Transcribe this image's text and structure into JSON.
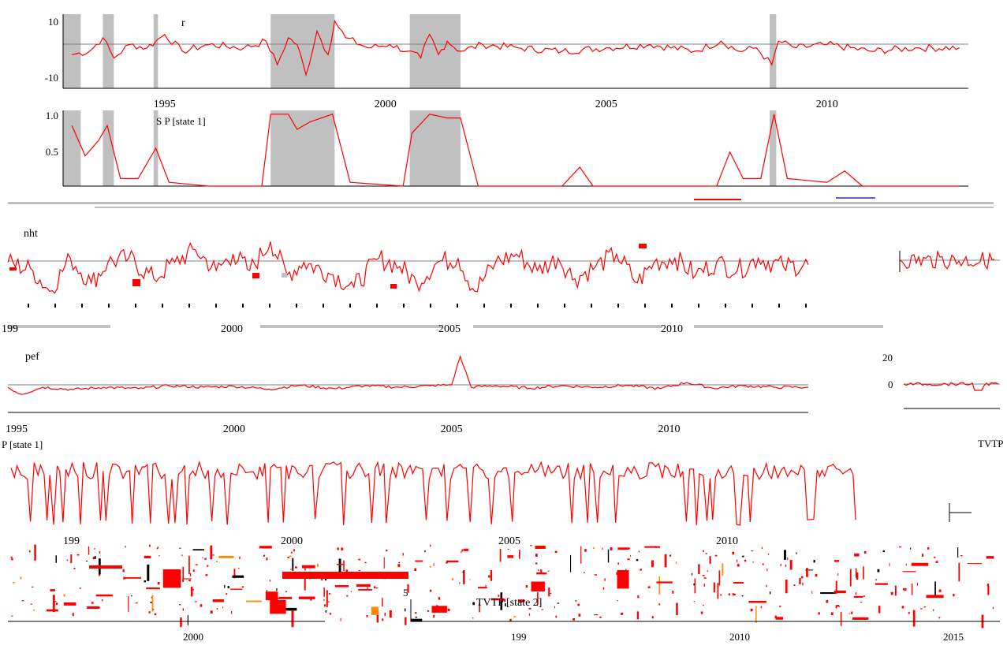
{
  "colors": {
    "line": "#ff0000",
    "shade": "#c0c0c0",
    "zero": "#808080",
    "artifact": "#ff8c00",
    "axis": "#000000"
  },
  "chart_data": [
    {
      "type": "line",
      "title": "r",
      "xlim": [
        1992.7,
        2013.2
      ],
      "ylim": [
        -12,
        10
      ],
      "yticks": [
        "10",
        "-10"
      ],
      "xticks": [
        "1995",
        "2000",
        "2005",
        "2010"
      ],
      "regimes": [
        [
          1992.7,
          1993.1
        ],
        [
          1993.6,
          1993.85
        ],
        [
          1994.75,
          1994.85
        ],
        [
          1997.4,
          1998.85
        ],
        [
          2000.55,
          2001.7
        ],
        [
          2008.7,
          2008.85
        ]
      ],
      "x": [
        1992.9,
        1993.3,
        1993.6,
        1993.85,
        1994.2,
        1994.6,
        1994.8,
        1995.0,
        1995.4,
        1996.0,
        1996.8,
        1997.3,
        1997.55,
        1997.8,
        1998.0,
        1998.2,
        1998.45,
        1998.7,
        1998.85,
        1999.1,
        1999.6,
        2000.1,
        2000.5,
        2000.8,
        2001.0,
        2001.2,
        2001.4,
        2001.7,
        2002.2,
        2003.0,
        2004.0,
        2005.0,
        2006.0,
        2007.0,
        2007.6,
        2008.0,
        2008.4,
        2008.75,
        2008.9,
        2009.3,
        2010.0,
        2011.0,
        2012.0,
        2013.0
      ],
      "values": [
        -2,
        -1,
        3,
        -3,
        1,
        0,
        2,
        4,
        -1,
        1,
        0,
        2,
        -5,
        3,
        1,
        -8,
        5,
        -2,
        8,
        3,
        0,
        1,
        -1,
        -3,
        4,
        -2,
        2,
        -1,
        1,
        0,
        -1,
        0,
        1,
        -1,
        2,
        -1,
        0,
        -5,
        2,
        0,
        1,
        -1,
        0,
        0
      ]
    },
    {
      "type": "area",
      "title": "S P [state 1]",
      "xlim": [
        1992.7,
        2013.2
      ],
      "ylim": [
        0,
        1.0
      ],
      "yticks": [
        "1.0",
        "0.5"
      ],
      "xticks": [
        "1995",
        "2000",
        "2005",
        "2010"
      ],
      "regimes": [
        [
          1992.7,
          1993.1
        ],
        [
          1993.6,
          1993.85
        ],
        [
          1994.75,
          1994.85
        ],
        [
          1997.4,
          1998.85
        ],
        [
          2000.55,
          2001.7
        ],
        [
          2008.7,
          2008.85
        ]
      ],
      "x": [
        1992.9,
        1993.2,
        1993.5,
        1993.7,
        1994.0,
        1994.4,
        1994.8,
        1995.1,
        1996.0,
        1997.2,
        1997.4,
        1997.8,
        1998.0,
        1998.3,
        1998.8,
        1999.2,
        2000.4,
        2000.6,
        2001.0,
        2001.4,
        2001.7,
        2002.1,
        2004.0,
        2004.4,
        2004.7,
        2006.0,
        2007.5,
        2007.8,
        2008.1,
        2008.5,
        2008.8,
        2009.1,
        2010.0,
        2010.4,
        2010.8,
        2013.0
      ],
      "values": [
        0.8,
        0.4,
        0.6,
        0.8,
        0.1,
        0.1,
        0.5,
        0.05,
        0.0,
        0.0,
        0.95,
        0.95,
        0.75,
        0.85,
        0.95,
        0.05,
        0.0,
        0.7,
        0.95,
        0.9,
        0.9,
        0.0,
        0.0,
        0.25,
        0.0,
        0.0,
        0.0,
        0.45,
        0.1,
        0.1,
        0.95,
        0.1,
        0.05,
        0.2,
        0.0,
        0.0
      ]
    },
    {
      "type": "line",
      "title": "nht",
      "xlim": [
        1994.0,
        2013.2
      ],
      "xticks": [
        "199",
        "2000",
        "2005",
        "2010"
      ],
      "x": [
        1994.0,
        1994.6,
        1995.0,
        1995.5,
        1996.0,
        1996.4,
        1996.9,
        1997.5,
        1998.0,
        1998.5,
        1999.0,
        1999.4,
        1999.8,
        2000.3,
        2000.7,
        2001.1,
        2001.8,
        2002.3,
        2002.9,
        2003.4,
        2003.8,
        2004.3,
        2004.8,
        2005.2,
        2005.7,
        2006.2,
        2006.7,
        2007.2,
        2007.6,
        2008.1,
        2008.6,
        2009.1,
        2009.5,
        2010.0,
        2010.5,
        2011.0,
        2011.5,
        2012.0,
        2012.6,
        2013.2
      ],
      "values": [
        0.5,
        -0.5,
        -3,
        1,
        -2,
        0.5,
        1,
        -1.5,
        0.5,
        2,
        -0.5,
        1.5,
        -0.5,
        3,
        -1,
        0.5,
        -1,
        -2.5,
        1,
        0,
        -2,
        0.5,
        1,
        -3,
        0.5,
        1.5,
        -0.5,
        1,
        -1.5,
        0,
        1.5,
        -2,
        0.5,
        1,
        -1,
        0.5,
        -0.5,
        1,
        0,
        0.2
      ]
    },
    {
      "type": "line",
      "title": "pef",
      "xlim": [
        1994.8,
        2013.2
      ],
      "yticks": [
        "20",
        "0"
      ],
      "xticks": [
        "1995",
        "2000",
        "2005",
        "2010"
      ],
      "x": [
        1994.8,
        1995.1,
        1995.6,
        1996.3,
        1997.0,
        1997.8,
        1998.5,
        1999.3,
        2000.0,
        2000.8,
        2001.5,
        2002.3,
        2003.0,
        2003.8,
        2004.5,
        2005.0,
        2005.2,
        2005.45,
        2006.0,
        2006.8,
        2007.5,
        2008.3,
        2009.0,
        2009.8,
        2010.4,
        2011.0,
        2011.7,
        2012.4,
        2013.2
      ],
      "values": [
        0,
        -1.5,
        0,
        -0.5,
        0,
        -0.3,
        0.3,
        0,
        0.2,
        -0.4,
        0.4,
        -0.3,
        0.3,
        0,
        0.3,
        0.5,
        6.5,
        0,
        0.3,
        -0.2,
        0.3,
        0,
        0.4,
        -0.3,
        1,
        -0.2,
        0.3,
        0,
        0
      ]
    },
    {
      "type": "line",
      "title": "P [state 1]",
      "xlim": [
        1993.0,
        2013.2
      ],
      "xticks": [
        "199",
        "2000",
        "2005",
        "2010"
      ],
      "series_label": "TVTP"
    },
    {
      "type": "line",
      "title": "TVTP [state 2]",
      "xticks": [
        "199",
        "2010",
        "2015"
      ]
    }
  ],
  "extra_labels": {
    "partial_year_1": "2000",
    "mid_number": "5"
  }
}
